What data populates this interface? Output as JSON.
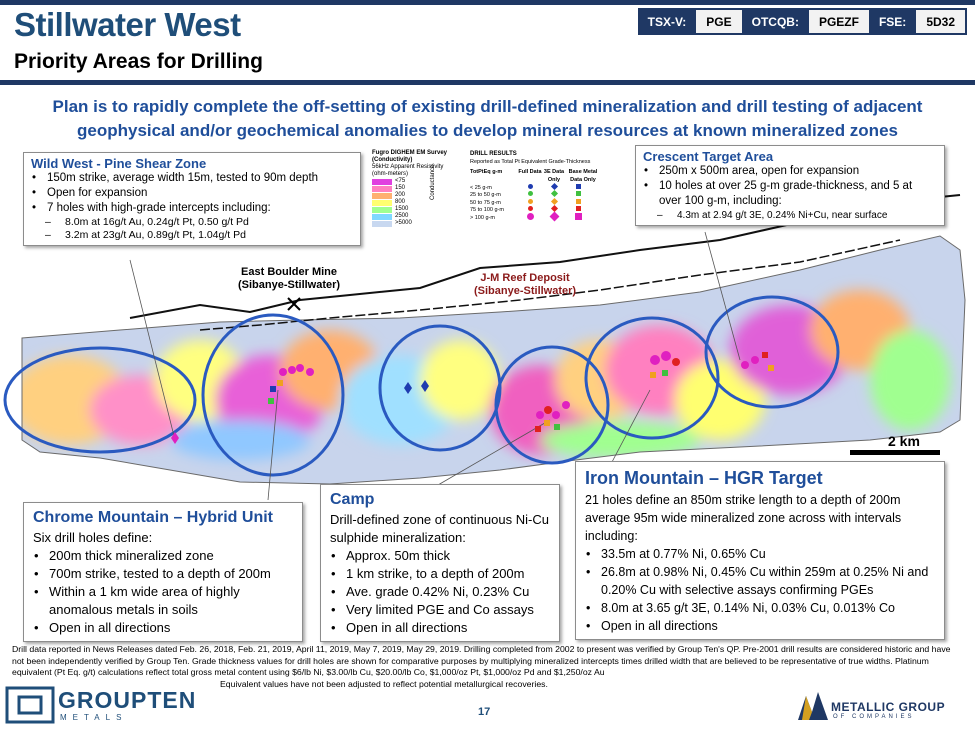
{
  "header": {
    "title": "Stillwater West",
    "subtitle": "Priority Areas for Drilling",
    "tickers": [
      {
        "exchange": "TSX-V:",
        "symbol": "PGE"
      },
      {
        "exchange": "OTCQB:",
        "symbol": "PGEZF"
      },
      {
        "exchange": "FSE:",
        "symbol": "5D32"
      }
    ]
  },
  "headline": "Plan is to rapidly complete the off-setting of existing drill-defined mineralization and drill testing of adjacent geophysical and/or geochemical anomalies to develop mineral resources at known mineralized zones",
  "wild_west": {
    "title": "Wild West - Pine Shear Zone",
    "items": [
      "150m strike, average width 15m, tested to 90m depth",
      "Open for expansion",
      "7 holes with high-grade intercepts including:"
    ],
    "subitems": [
      "8.0m at 16g/t Au, 0.24g/t Pt, 0.50 g/t Pd",
      "3.2m at 23g/t Au, 0.89g/t Pt, 1.04g/t Pd"
    ]
  },
  "crescent": {
    "title": "Crescent Target Area",
    "items": [
      "250m x 500m area, open for expansion",
      "10 holes at over 25 g-m grade-thickness, and 5 at over 100 g-m, including:"
    ],
    "subitems": [
      "4.3m at 2.94 g/t 3E, 0.24% Ni+Cu, near surface"
    ]
  },
  "chrome": {
    "title": "Chrome Mountain – Hybrid Unit",
    "intro": "Six drill holes define:",
    "items": [
      "200m thick mineralized zone",
      "700m strike, tested to a depth of 200m",
      "Within a 1 km wide area of highly anomalous metals in soils",
      "Open in all directions"
    ]
  },
  "camp": {
    "title": "Camp",
    "intro": "Drill-defined zone of continuous Ni-Cu sulphide mineralization:",
    "items": [
      "Approx. 50m thick",
      "1 km strike, to a depth of 200m",
      "Ave. grade 0.42% Ni, 0.23% Cu",
      "Very limited PGE and Co assays",
      "Open in all directions"
    ]
  },
  "iron": {
    "title": "Iron Mountain – HGR Target",
    "intro": "21 holes define an 850m strike length to a depth of 200m average 95m wide mineralized zone across with intervals including:",
    "items": [
      "33.5m at 0.77% Ni, 0.65% Cu",
      "26.8m at 0.98% Ni, 0.45% Cu within 259m at 0.25% Ni and 0.20% Cu with selective assays confirming PGEs",
      "8.0m at 3.65 g/t 3E, 0.14% Ni, 0.03% Cu, 0.013% Co",
      "Open in all directions"
    ]
  },
  "legend_em": {
    "title1": "Fugro DIGHEM EM Survey",
    "title2": "(Conductivity)",
    "title3": "56kHz Apparent Resistivity",
    "title4": "(ohm-meters)",
    "side": "Conductance",
    "bins": [
      {
        "label": "<75",
        "color": "#e040e0"
      },
      {
        "label": "150",
        "color": "#ff80c0"
      },
      {
        "label": "200",
        "color": "#ffb070"
      },
      {
        "label": "800",
        "color": "#ffff70"
      },
      {
        "label": "1500",
        "color": "#a0ff90"
      },
      {
        "label": "2500",
        "color": "#80d8ff"
      },
      {
        "label": ">5000",
        "color": "#c8d8f0"
      }
    ]
  },
  "legend_drill": {
    "title": "DRILL RESULTS",
    "sub": "Reported as Total Pt Equivalent Grade-Thickness",
    "headers": [
      "TotPtEq g-m",
      "Full Data",
      "3E Data Only",
      "Base Metal Data Only"
    ],
    "rows": [
      {
        "label": "< 25 g-m",
        "color": "#1f3cb0"
      },
      {
        "label": "25 to 50 g-m",
        "color": "#40c040"
      },
      {
        "label": "50 to 75 g-m",
        "color": "#f0a020"
      },
      {
        "label": "75 to 100 g-m",
        "color": "#e02020"
      },
      {
        "label": "> 100 g-m",
        "color": "#e020c0"
      }
    ]
  },
  "map_labels": {
    "east_boulder_1": "East Boulder Mine",
    "east_boulder_2": "(Sibanye-Stillwater)",
    "jm_1": "J-M Reef Deposit",
    "jm_2": "(Sibanye-Stillwater)",
    "scale": "2 km"
  },
  "footer": {
    "text": "Drill data reported in News Releases dated Feb. 26, 2018, Feb. 21, 2019, April 11, 2019, May 7, 2019, May 29, 2019. Drilling completed from 2002 to present was verified by Group Ten's QP. Pre-2001 drill results are considered historic and have not been independently verified by Group Ten. Grade thickness values for drill holes are shown for comparative purposes by multiplying mineralized intercepts times drilled width that are believed to be representative of true widths. Platinum equivalent (Pt Eq. g/t) calculations reflect total gross metal content using $6/lb Ni, $3.00/lb Cu, $20.00/lb Co, $1,000/oz Pt, $1,000/oz Pd and $1,250/oz Au",
    "text2": "Equivalent values have not been adjusted to reflect potential metallurgical recoveries.",
    "page": "17"
  },
  "logos": {
    "group_ten": "GROUPTEN",
    "group_ten_sub": "METALS",
    "metallic": "METALLIC GROUP",
    "metallic_sub": "OF COMPANIES"
  }
}
